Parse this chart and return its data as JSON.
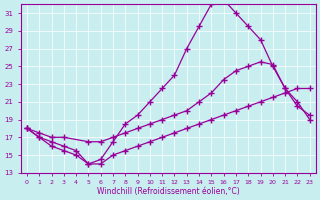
{
  "xlabel": "Windchill (Refroidissement éolien,°C)",
  "bg_color": "#c8eef0",
  "line_color": "#990099",
  "xlim": [
    -0.5,
    23.5
  ],
  "ylim": [
    13,
    32
  ],
  "yticks": [
    13,
    15,
    17,
    19,
    21,
    23,
    25,
    27,
    29,
    31
  ],
  "xticks": [
    0,
    1,
    2,
    3,
    4,
    5,
    6,
    7,
    8,
    9,
    10,
    11,
    12,
    13,
    14,
    15,
    16,
    17,
    18,
    19,
    20,
    21,
    22,
    23
  ],
  "line1_x": [
    0,
    1,
    2,
    3,
    4,
    5,
    6,
    7,
    8,
    9,
    10,
    11,
    12,
    13,
    14,
    15,
    16,
    17,
    18,
    19,
    20,
    21,
    22,
    23
  ],
  "line1_y": [
    18.0,
    17.0,
    16.5,
    16.0,
    15.5,
    14.0,
    14.5,
    16.5,
    18.5,
    19.5,
    21.0,
    22.5,
    24.0,
    27.0,
    29.5,
    32.0,
    32.5,
    31.0,
    29.5,
    28.0,
    25.0,
    22.5,
    20.5,
    19.5
  ],
  "line2_x": [
    0,
    1,
    2,
    3,
    5,
    6,
    7,
    8,
    9,
    10,
    11,
    12,
    13,
    14,
    15,
    16,
    17,
    18,
    19,
    20,
    21,
    22,
    23
  ],
  "line2_y": [
    18.0,
    17.5,
    17.0,
    17.0,
    16.5,
    16.5,
    17.0,
    17.5,
    18.0,
    18.5,
    19.0,
    19.5,
    20.0,
    21.0,
    22.0,
    23.5,
    24.5,
    25.0,
    25.5,
    25.2,
    22.5,
    21.0,
    19.0
  ],
  "line3_x": [
    0,
    1,
    2,
    3,
    4,
    5,
    6,
    7,
    8,
    9,
    10,
    11,
    12,
    13,
    14,
    15,
    16,
    17,
    18,
    19,
    20,
    21,
    22,
    23
  ],
  "line3_y": [
    18.0,
    17.0,
    16.0,
    15.5,
    15.0,
    14.0,
    14.0,
    15.0,
    15.5,
    16.0,
    16.5,
    17.0,
    17.5,
    18.0,
    18.5,
    19.0,
    19.5,
    20.0,
    20.5,
    21.0,
    21.5,
    22.0,
    22.5,
    22.5
  ]
}
